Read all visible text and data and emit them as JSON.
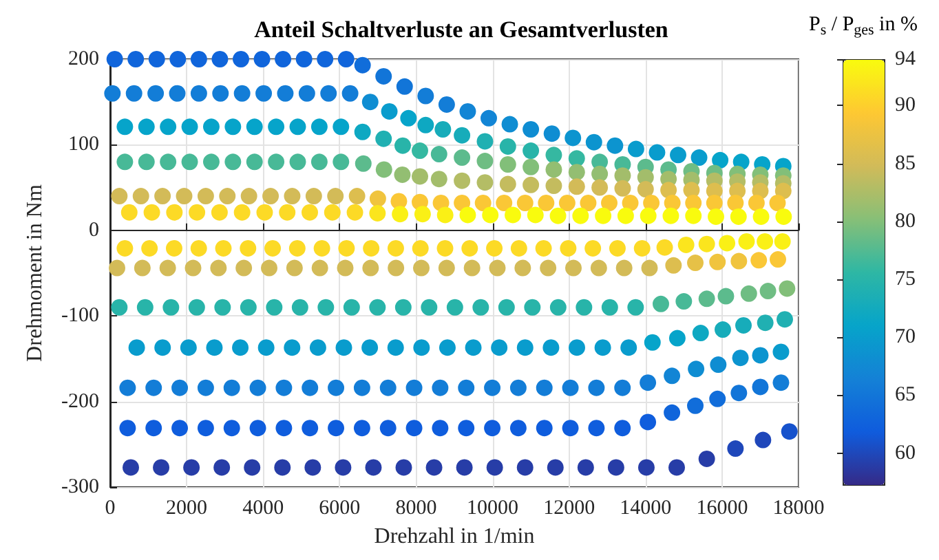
{
  "chart_data": {
    "type": "scatter",
    "title": "Anteil Schaltverluste an Gesamtverlusten",
    "xlabel": "Drehzahl in 1/min",
    "ylabel": "Drehmoment in Nm",
    "clabel": "P$_{s}$ / P$_{ges}$ in %",
    "xlim": [
      0,
      18000
    ],
    "ylim": [
      -300,
      200
    ],
    "xticks": [
      0,
      2000,
      4000,
      6000,
      8000,
      10000,
      12000,
      14000,
      16000,
      18000
    ],
    "yticks": [
      -300,
      -200,
      -100,
      0,
      100,
      200
    ],
    "clim": [
      57.3,
      94
    ],
    "cticks": [
      60,
      65,
      70,
      75,
      80,
      85,
      90,
      94
    ],
    "grid": true,
    "marker": "circle",
    "x": [
      120,
      670,
      1220,
      1770,
      2320,
      2870,
      3420,
      3970,
      4520,
      5070,
      5620,
      6170,
      6600,
      7150,
      7700,
      8250,
      8800,
      9350,
      9900,
      10450,
      11000,
      11550,
      12100,
      12650,
      13200,
      13750,
      14300,
      14850,
      15400,
      15950,
      16500,
      17050,
      17600,
      60,
      625,
      1190,
      1755,
      2320,
      2885,
      3450,
      4015,
      4580,
      5145,
      5710,
      6275,
      6800,
      7300,
      7800,
      8250,
      8700,
      9200,
      9800,
      10400,
      11000,
      11600,
      12200,
      12800,
      13400,
      14000,
      14600,
      15200,
      15800,
      16400,
      17000,
      17600,
      385,
      950,
      1515,
      2080,
      2645,
      3210,
      3775,
      4340,
      4905,
      5470,
      6035,
      6600,
      7150,
      7650,
      8100,
      8600,
      9200,
      9800,
      10400,
      11000,
      11600,
      12200,
      12800,
      13400,
      14000,
      14600,
      15200,
      15800,
      16400,
      17000,
      17600,
      385,
      950,
      1515,
      2080,
      2645,
      3210,
      3775,
      4340,
      4905,
      5470,
      6035,
      6620,
      7160,
      7640,
      8100,
      8600,
      9200,
      9800,
      10400,
      11000,
      11600,
      12200,
      12800,
      13400,
      14000,
      14600,
      15200,
      15800,
      16400,
      17000,
      17600,
      240,
      805,
      1370,
      1935,
      2500,
      3065,
      3630,
      4195,
      4760,
      5325,
      5890,
      6455,
      7000,
      7550,
      8100,
      8650,
      9200,
      9750,
      10300,
      10850,
      11400,
      11950,
      12500,
      13050,
      13600,
      14150,
      14700,
      15250,
      15800,
      16350,
      16900,
      17450,
      500,
      1090,
      1680,
      2270,
      2860,
      3450,
      4040,
      4630,
      5220,
      5810,
      6400,
      6990,
      7580,
      8170,
      8760,
      9350,
      9940,
      10530,
      11120,
      11710,
      12300,
      12890,
      13480,
      14070,
      14660,
      15250,
      15840,
      16430,
      17020,
      17610,
      385,
      1029,
      1673,
      2317,
      2961,
      3605,
      4249,
      4893,
      5537,
      6181,
      6825,
      7469,
      8113,
      8757,
      9401,
      10045,
      10689,
      11333,
      11977,
      12621,
      13265,
      13909,
      14500,
      15060,
      15600,
      16130,
      16640,
      17120,
      17580,
      180,
      843,
      1506,
      2169,
      2832,
      3495,
      4158,
      4821,
      5484,
      6147,
      6810,
      7473,
      8136,
      8799,
      9462,
      10125,
      10788,
      11451,
      12114,
      12777,
      13440,
      14103,
      14730,
      15300,
      15880,
      16440,
      16960,
      17460,
      240,
      915,
      1590,
      2265,
      2940,
      3615,
      4290,
      4965,
      5640,
      6315,
      6990,
      7665,
      8340,
      9015,
      9690,
      10365,
      11040,
      11715,
      12390,
      13065,
      13740,
      14400,
      15000,
      15600,
      16100,
      16700,
      17200,
      17700,
      695,
      1372,
      2049,
      2726,
      3403,
      4080,
      4757,
      5434,
      6111,
      6788,
      7465,
      8142,
      8819,
      9496,
      10173,
      10850,
      11527,
      12204,
      12881,
      13558,
      14180,
      14830,
      15440,
      16020,
      16560,
      17130,
      17640,
      457,
      1138,
      1819,
      2500,
      3181,
      3862,
      4543,
      5224,
      5905,
      6586,
      7267,
      7948,
      8629,
      9310,
      9991,
      10672,
      11353,
      12034,
      12715,
      13396,
      14060,
      14690,
      15320,
      15900,
      16480,
      17000,
      17540,
      457,
      1138,
      1819,
      2500,
      3181,
      3862,
      4543,
      5224,
      5905,
      6586,
      7267,
      7948,
      8629,
      9310,
      9991,
      10672,
      11353,
      12034,
      12715,
      13396,
      14060,
      14690,
      15300,
      15880,
      16440,
      17000,
      17540,
      540,
      1333,
      2126,
      2919,
      3712,
      4505,
      5298,
      6091,
      6884,
      7677,
      8470,
      9263,
      10056,
      10849,
      11642,
      12435,
      13228,
      14021,
      14814,
      15600,
      16350,
      17070,
      17760
    ],
    "values": [
      200,
      200,
      200,
      200,
      200,
      200,
      200,
      200,
      200,
      200,
      200,
      200,
      193,
      180,
      168,
      157,
      147,
      139,
      131,
      124,
      118,
      113,
      108,
      103,
      99,
      95,
      91,
      88,
      85,
      82,
      80,
      77,
      75,
      160,
      160,
      160,
      160,
      160,
      160,
      160,
      160,
      160,
      160,
      160,
      160,
      150,
      139,
      131,
      123,
      118,
      111,
      104,
      98,
      93,
      88,
      84,
      80,
      77,
      74,
      71,
      69,
      67,
      66,
      65,
      64,
      121,
      121,
      121,
      121,
      121,
      121,
      121,
      121,
      121,
      121,
      121,
      115,
      107,
      99,
      93,
      89,
      85,
      81,
      77,
      74,
      71,
      68,
      66,
      64,
      62,
      60,
      59,
      58,
      57,
      56,
      55,
      80,
      80,
      80,
      80,
      80,
      80,
      80,
      80,
      80,
      80,
      80,
      78,
      71,
      65,
      63,
      60,
      58,
      56,
      54,
      53,
      52,
      51,
      50,
      49,
      48,
      47,
      47,
      46,
      46,
      46,
      46,
      40,
      40,
      40,
      40,
      40,
      40,
      40,
      40,
      40,
      40,
      40,
      40,
      37,
      34,
      33,
      32,
      32,
      32,
      32,
      32,
      32,
      32,
      32,
      32,
      32,
      32,
      32,
      32,
      32,
      32,
      32,
      32,
      21,
      21,
      21,
      21,
      21,
      21,
      21,
      21,
      21,
      21,
      21,
      20,
      19,
      19,
      18,
      18,
      18,
      18,
      18,
      17,
      17,
      17,
      17,
      17,
      17,
      17,
      16,
      16,
      16,
      16,
      -21,
      -21,
      -21,
      -21,
      -21,
      -21,
      -21,
      -21,
      -21,
      -21,
      -21,
      -21,
      -21,
      -21,
      -21,
      -21,
      -21,
      -21,
      -21,
      -21,
      -21,
      -21,
      -20,
      -17,
      -16,
      -15,
      -13,
      -13,
      -13,
      -44,
      -44,
      -44,
      -44,
      -44,
      -44,
      -44,
      -44,
      -44,
      -44,
      -44,
      -44,
      -44,
      -44,
      -44,
      -44,
      -44,
      -44,
      -44,
      -44,
      -44,
      -44,
      -41,
      -38,
      -37,
      -36,
      -35,
      -34,
      -90,
      -90,
      -90,
      -90,
      -90,
      -90,
      -90,
      -90,
      -90,
      -90,
      -90,
      -90,
      -90,
      -90,
      -90,
      -90,
      -90,
      -90,
      -90,
      -90,
      -90,
      -86,
      -83,
      -80,
      -77,
      -74,
      -71,
      -68,
      -137,
      -137,
      -137,
      -137,
      -137,
      -137,
      -137,
      -137,
      -137,
      -137,
      -137,
      -137,
      -137,
      -137,
      -137,
      -137,
      -137,
      -137,
      -137,
      -137,
      -131,
      -126,
      -120,
      -116,
      -111,
      -108,
      -104,
      -184,
      -184,
      -184,
      -184,
      -184,
      -184,
      -184,
      -184,
      -184,
      -184,
      -184,
      -184,
      -184,
      -184,
      -184,
      -184,
      -184,
      -184,
      -184,
      -184,
      -178,
      -170,
      -162,
      -157,
      -149,
      -146,
      -142,
      -231,
      -231,
      -231,
      -231,
      -231,
      -231,
      -231,
      -231,
      -231,
      -231,
      -231,
      -231,
      -231,
      -231,
      -231,
      -231,
      -231,
      -231,
      -231,
      -231,
      -224,
      -213,
      -205,
      -197,
      -190,
      -183,
      -178,
      -277,
      -277,
      -277,
      -277,
      -277,
      -277,
      -277,
      -277,
      -277,
      -277,
      -277,
      -277,
      -277,
      -277,
      -277,
      -277,
      -277,
      -277,
      -277,
      -267,
      -255,
      -245,
      -235
    ],
    "cvalues": [
      63,
      63,
      63,
      63,
      63,
      63,
      63,
      63,
      63,
      63,
      63,
      63,
      64,
      65,
      65,
      66,
      66,
      67,
      67,
      68,
      68,
      68,
      69,
      69,
      69,
      70,
      70,
      70,
      70,
      71,
      71,
      71,
      71,
      66,
      66,
      66,
      66,
      66,
      66,
      66,
      66,
      66,
      66,
      66,
      66,
      68,
      70,
      71,
      72,
      73,
      73,
      74,
      75,
      75,
      76,
      76,
      77,
      77,
      78,
      78,
      79,
      79,
      80,
      80,
      80,
      71,
      71,
      71,
      71,
      71,
      71,
      71,
      71,
      71,
      71,
      71,
      72,
      74,
      75,
      76,
      77,
      78,
      79,
      80,
      80,
      81,
      81,
      81,
      82,
      82,
      82,
      82,
      83,
      83,
      83,
      83,
      77,
      77,
      77,
      77,
      77,
      77,
      77,
      77,
      77,
      77,
      77,
      78,
      80,
      81,
      82,
      82,
      83,
      83,
      84,
      84,
      84,
      85,
      85,
      85,
      85,
      86,
      86,
      86,
      86,
      86,
      86,
      85,
      85,
      85,
      85,
      85,
      85,
      85,
      85,
      85,
      85,
      85,
      86,
      88,
      89,
      89,
      89,
      89,
      89,
      89,
      89,
      89,
      89,
      89,
      89,
      89,
      89,
      89,
      89,
      89,
      89,
      89,
      89,
      91,
      91,
      91,
      91,
      91,
      91,
      91,
      91,
      91,
      91,
      91,
      92,
      93,
      93,
      93,
      94,
      94,
      94,
      94,
      94,
      94,
      94,
      94,
      94,
      94,
      94,
      94,
      94,
      94,
      94,
      91,
      91,
      91,
      91,
      91,
      91,
      91,
      91,
      91,
      91,
      91,
      91,
      91,
      91,
      91,
      91,
      91,
      91,
      91,
      91,
      91,
      91,
      91,
      92,
      92,
      93,
      93,
      93,
      93,
      85,
      85,
      85,
      85,
      85,
      85,
      85,
      85,
      85,
      85,
      85,
      85,
      85,
      85,
      85,
      85,
      85,
      85,
      85,
      85,
      85,
      85,
      86,
      87,
      88,
      88,
      89,
      89,
      75,
      75,
      75,
      75,
      75,
      75,
      75,
      75,
      75,
      75,
      75,
      75,
      75,
      75,
      75,
      75,
      75,
      75,
      75,
      75,
      75,
      77,
      77,
      78,
      78,
      79,
      79,
      80,
      70,
      70,
      70,
      70,
      70,
      70,
      70,
      70,
      70,
      70,
      70,
      70,
      70,
      70,
      70,
      70,
      70,
      70,
      70,
      70,
      71,
      71,
      72,
      73,
      73,
      74,
      74,
      66,
      66,
      66,
      66,
      66,
      66,
      66,
      66,
      66,
      66,
      66,
      66,
      66,
      66,
      66,
      66,
      66,
      66,
      66,
      66,
      66,
      67,
      68,
      68,
      69,
      69,
      70,
      62,
      62,
      62,
      62,
      62,
      62,
      62,
      62,
      62,
      62,
      62,
      62,
      62,
      62,
      62,
      62,
      62,
      62,
      62,
      62,
      62,
      63,
      64,
      64,
      65,
      65,
      66,
      59,
      59,
      59,
      59,
      59,
      59,
      59,
      59,
      59,
      59,
      59,
      59,
      59,
      59,
      59,
      59,
      59,
      59,
      59,
      59,
      60,
      60,
      61
    ]
  }
}
